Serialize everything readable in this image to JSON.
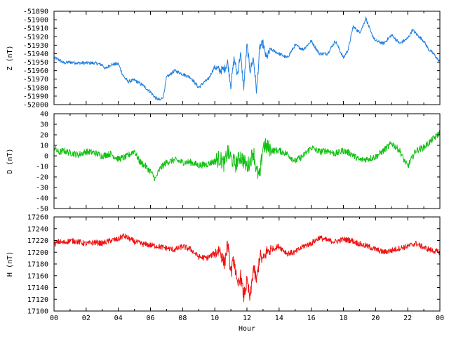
{
  "chart_data": [
    {
      "type": "line",
      "ylabel": "Z (nT)",
      "color": "#1f7fe0",
      "ylim": [
        -52000,
        -51890
      ],
      "yticks": [
        -51890,
        -51900,
        -51910,
        -51920,
        -51930,
        -51940,
        -51950,
        -51960,
        -51970,
        -51980,
        -51990,
        -52000
      ],
      "grid": false,
      "series": [
        {
          "x": [
            0,
            0.3,
            0.6,
            1,
            1.5,
            2,
            2.5,
            3,
            3.2,
            3.5,
            4,
            4.3,
            4.6,
            5,
            5.5,
            6,
            6.3,
            6.6,
            6.8,
            7,
            7.5,
            8,
            8.5,
            9,
            9.3,
            9.6,
            10,
            10.3,
            10.6,
            10.8,
            11,
            11.2,
            11.4,
            11.6,
            11.8,
            12,
            12.2,
            12.4,
            12.6,
            12.8,
            13,
            13.2,
            13.5,
            14,
            14.5,
            15,
            15.5,
            16,
            16.5,
            17,
            17.5,
            18,
            18.3,
            18.6,
            19,
            19.2,
            19.4,
            19.7,
            20,
            20.5,
            21,
            21.5,
            22,
            22.3,
            22.6,
            23,
            23.3,
            23.6,
            24
          ],
          "y": [
            -51945,
            -51947,
            -51951,
            -51950,
            -51951,
            -51951,
            -51951,
            -51953,
            -51958,
            -51953,
            -51952,
            -51966,
            -51973,
            -51971,
            -51977,
            -51985,
            -51992,
            -51995,
            -51990,
            -51968,
            -51960,
            -51964,
            -51968,
            -51980,
            -51974,
            -51970,
            -51955,
            -51960,
            -51958,
            -51950,
            -51978,
            -51945,
            -51965,
            -51940,
            -51980,
            -51930,
            -51960,
            -51945,
            -51985,
            -51932,
            -51928,
            -51945,
            -51935,
            -51940,
            -51945,
            -51930,
            -51935,
            -51925,
            -51940,
            -51940,
            -51925,
            -51945,
            -51935,
            -51908,
            -51915,
            -51908,
            -51898,
            -51915,
            -51925,
            -51928,
            -51918,
            -51928,
            -51922,
            -51912,
            -51918,
            -51925,
            -51935,
            -51940,
            -51950
          ]
        }
      ]
    },
    {
      "type": "line",
      "ylabel": "D (nT)",
      "color": "#11c011",
      "ylim": [
        -50,
        40
      ],
      "yticks": [
        40,
        30,
        20,
        10,
        0,
        -10,
        -20,
        -30,
        -40,
        -50
      ],
      "grid": false,
      "series": [
        {
          "x": [
            0,
            0.3,
            0.6,
            1,
            1.5,
            2,
            2.5,
            3,
            3.5,
            4,
            4.5,
            5,
            5.3,
            5.7,
            6,
            6.3,
            6.6,
            7,
            7.5,
            8,
            8.5,
            9,
            9.5,
            10,
            10.3,
            10.6,
            10.8,
            11,
            11.3,
            11.6,
            12,
            12.2,
            12.4,
            12.6,
            12.8,
            13,
            13.3,
            13.6,
            14,
            14.5,
            15,
            15.5,
            16,
            16.5,
            17,
            17.5,
            18,
            18.5,
            19,
            19.5,
            20,
            20.5,
            21,
            21.5,
            21.8,
            22,
            22.5,
            23,
            23.5,
            24
          ],
          "y": [
            8,
            3,
            5,
            3,
            1,
            4,
            3,
            0,
            2,
            -3,
            -1,
            5,
            -5,
            -10,
            -15,
            -22,
            -12,
            -6,
            -4,
            -6,
            -6,
            -9,
            -8,
            -5,
            -2,
            -8,
            4,
            -2,
            -8,
            0,
            -10,
            -5,
            5,
            -15,
            -20,
            10,
            8,
            5,
            5,
            2,
            -5,
            0,
            8,
            4,
            5,
            2,
            5,
            2,
            -4,
            -3,
            -1,
            5,
            12,
            5,
            -5,
            -10,
            5,
            8,
            15,
            22
          ]
        }
      ]
    },
    {
      "type": "line",
      "ylabel": "H (nT)",
      "xlabel": "Hour",
      "color": "#ee1111",
      "ylim": [
        17100,
        17260
      ],
      "yticks": [
        17260,
        17240,
        17220,
        17200,
        17180,
        17160,
        17140,
        17120,
        17100
      ],
      "xticks": [
        "00",
        "02",
        "04",
        "06",
        "08",
        "10",
        "12",
        "14",
        "16",
        "18",
        "20",
        "22",
        "00"
      ],
      "grid": false,
      "series": [
        {
          "x": [
            0,
            0.3,
            0.6,
            1,
            1.5,
            2,
            2.5,
            3,
            3.5,
            4,
            4.3,
            4.6,
            5,
            5.5,
            6,
            6.5,
            7,
            7.5,
            8,
            8.5,
            9,
            9.5,
            10,
            10.3,
            10.6,
            10.8,
            11,
            11.2,
            11.4,
            11.6,
            11.8,
            12,
            12.2,
            12.4,
            12.6,
            12.8,
            13,
            13.2,
            13.5,
            14,
            14.5,
            15,
            15.5,
            16,
            16.5,
            17,
            17.5,
            18,
            18.5,
            19,
            19.5,
            20,
            20.5,
            21,
            21.5,
            22,
            22.5,
            23,
            23.5,
            24
          ],
          "y": [
            17213,
            17218,
            17216,
            17220,
            17218,
            17214,
            17217,
            17215,
            17220,
            17222,
            17228,
            17224,
            17218,
            17214,
            17212,
            17210,
            17207,
            17204,
            17210,
            17205,
            17192,
            17190,
            17198,
            17205,
            17180,
            17215,
            17165,
            17190,
            17140,
            17160,
            17125,
            17150,
            17120,
            17175,
            17150,
            17195,
            17185,
            17200,
            17205,
            17210,
            17198,
            17200,
            17210,
            17215,
            17225,
            17220,
            17218,
            17222,
            17220,
            17214,
            17210,
            17205,
            17200,
            17203,
            17207,
            17210,
            17215,
            17208,
            17203,
            17200
          ]
        }
      ]
    }
  ]
}
